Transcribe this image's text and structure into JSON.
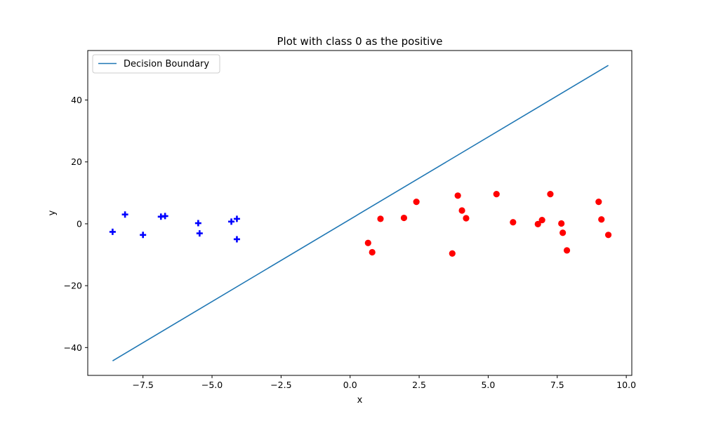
{
  "chart_data": {
    "type": "scatter",
    "title": "Plot with class 0 as the positive",
    "xlabel": "x",
    "ylabel": "y",
    "xlim": [
      -9.5,
      10.2
    ],
    "ylim": [
      -49,
      56
    ],
    "xticks": [
      -7.5,
      -5.0,
      -2.5,
      0.0,
      2.5,
      5.0,
      7.5,
      10.0
    ],
    "xtick_labels": [
      "−7.5",
      "−5.0",
      "−2.5",
      "0.0",
      "2.5",
      "5.0",
      "7.5",
      "10.0"
    ],
    "yticks": [
      -40,
      -20,
      0,
      20,
      40
    ],
    "ytick_labels": [
      "−40",
      "−20",
      "0",
      "20",
      "40"
    ],
    "grid": false,
    "legend_position": "top-left",
    "series": [
      {
        "name": "Decision Boundary",
        "kind": "line",
        "color": "#1f77b4",
        "x": [
          -8.6,
          9.35
        ],
        "y": [
          -44.3,
          51.2
        ]
      },
      {
        "kind": "scatter",
        "marker": "plus",
        "color": "#0000ff",
        "x": [
          -8.6,
          -8.15,
          -7.5,
          -6.85,
          -6.7,
          -5.5,
          -5.45,
          -4.3,
          -4.1,
          -4.1
        ],
        "y": [
          -2.6,
          3.0,
          -3.6,
          2.3,
          2.5,
          0.2,
          -3.1,
          0.7,
          1.6,
          -5.0
        ]
      },
      {
        "kind": "scatter",
        "marker": "circle",
        "color": "#ff0000",
        "x": [
          0.65,
          0.8,
          1.1,
          1.95,
          2.4,
          3.7,
          3.9,
          4.05,
          4.2,
          5.3,
          5.9,
          6.8,
          6.95,
          7.25,
          7.65,
          7.7,
          7.85,
          9.0,
          9.1,
          9.35
        ],
        "y": [
          -6.2,
          -9.2,
          1.6,
          1.9,
          7.1,
          -9.6,
          9.1,
          4.3,
          1.8,
          9.6,
          0.5,
          -0.1,
          1.2,
          9.6,
          0.1,
          -2.9,
          -8.6,
          7.1,
          1.4,
          -3.6
        ]
      }
    ]
  }
}
